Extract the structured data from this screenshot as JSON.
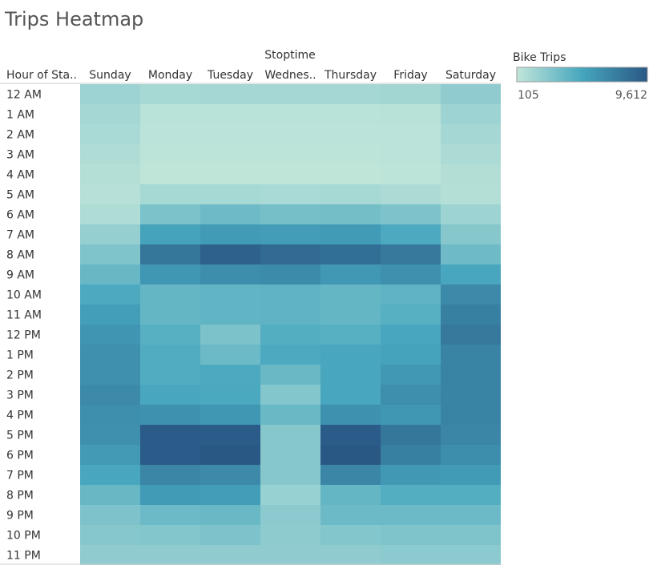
{
  "chart_data": {
    "type": "heatmap",
    "title": "Trips Heatmap",
    "column_header": "Stoptime",
    "row_header": "Hour of Sta..",
    "columns": [
      "Sunday",
      "Monday",
      "Tuesday",
      "Wednes..",
      "Thursday",
      "Friday",
      "Saturday"
    ],
    "rows": [
      "12 AM",
      "1 AM",
      "2 AM",
      "3 AM",
      "4 AM",
      "5 AM",
      "6 AM",
      "7 AM",
      "8 AM",
      "9 AM",
      "10 AM",
      "11 AM",
      "12 PM",
      "1 PM",
      "2 PM",
      "3 PM",
      "4 PM",
      "5 PM",
      "6 PM",
      "7 PM",
      "8 PM",
      "9 PM",
      "10 PM",
      "11 PM"
    ],
    "values": [
      [
        1500,
        1100,
        1200,
        1200,
        1200,
        1300,
        2000
      ],
      [
        1200,
        400,
        400,
        400,
        400,
        450,
        1500
      ],
      [
        1000,
        300,
        300,
        300,
        300,
        350,
        1200
      ],
      [
        800,
        250,
        250,
        250,
        250,
        300,
        900
      ],
      [
        600,
        200,
        200,
        200,
        200,
        250,
        700
      ],
      [
        500,
        1100,
        1100,
        1000,
        1100,
        900,
        600
      ],
      [
        800,
        2800,
        3300,
        3000,
        3100,
        2700,
        1500
      ],
      [
        1800,
        5000,
        5500,
        5400,
        5500,
        4600,
        2400
      ],
      [
        2600,
        7800,
        9000,
        8500,
        8200,
        7600,
        3300
      ],
      [
        3600,
        5800,
        6400,
        6500,
        5700,
        6200,
        4800
      ],
      [
        4600,
        3700,
        3800,
        3900,
        3700,
        3900,
        6600
      ],
      [
        5300,
        3700,
        3800,
        3900,
        3700,
        4200,
        7200
      ],
      [
        5900,
        4200,
        2800,
        4300,
        4200,
        4800,
        7600
      ],
      [
        6200,
        4400,
        3400,
        4600,
        4800,
        5000,
        7000
      ],
      [
        6200,
        4400,
        4600,
        3500,
        4800,
        5700,
        7000
      ],
      [
        6600,
        4800,
        4700,
        2500,
        4800,
        6300,
        7000
      ],
      [
        6300,
        6100,
        5800,
        3500,
        6100,
        5800,
        7000
      ],
      [
        6200,
        9400,
        9400,
        2400,
        9400,
        7800,
        6800
      ],
      [
        5600,
        9400,
        9600,
        2400,
        9600,
        7200,
        6400
      ],
      [
        4800,
        6800,
        6600,
        2400,
        6800,
        5700,
        5500
      ],
      [
        3600,
        5500,
        5400,
        1700,
        3700,
        4300,
        4300
      ],
      [
        2700,
        3400,
        3500,
        2200,
        3400,
        3400,
        3400
      ],
      [
        2400,
        2500,
        2700,
        2100,
        2500,
        2600,
        2600
      ],
      [
        2000,
        2000,
        2000,
        2000,
        2000,
        2200,
        2200
      ]
    ],
    "legend": {
      "title": "Bike Trips",
      "min": 105,
      "max": 9612,
      "min_label": "105",
      "max_label": "9,612",
      "placement": "top-right"
    },
    "color_low": "#c1e6da",
    "color_mid": "#46a6be",
    "color_high": "#2a5885"
  }
}
